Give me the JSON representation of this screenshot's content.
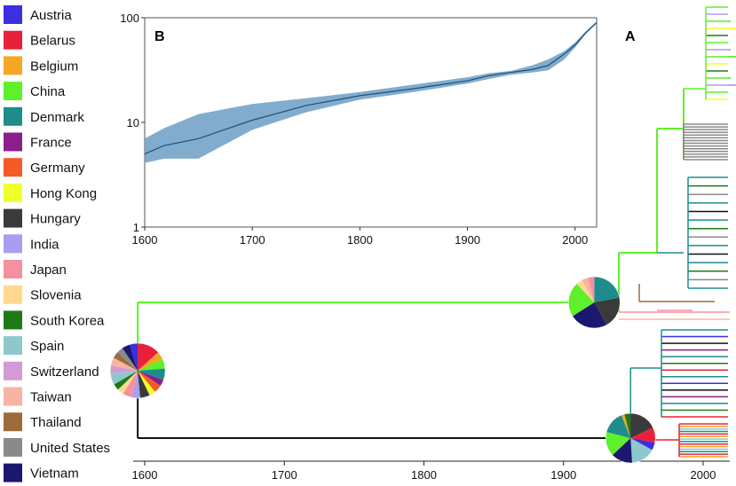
{
  "legend": [
    {
      "label": "Austria",
      "color": "#3b2fe0"
    },
    {
      "label": "Belarus",
      "color": "#e8203c"
    },
    {
      "label": "Belgium",
      "color": "#f5a623"
    },
    {
      "label": "China",
      "color": "#5ef02a"
    },
    {
      "label": "Denmark",
      "color": "#1f8c8c"
    },
    {
      "label": "France",
      "color": "#8a1f8c"
    },
    {
      "label": "Germany",
      "color": "#f55a26"
    },
    {
      "label": "Hong Kong",
      "color": "#f0ff2a"
    },
    {
      "label": "Hungary",
      "color": "#3a3a3a"
    },
    {
      "label": "India",
      "color": "#a89ef0"
    },
    {
      "label": "Japan",
      "color": "#f590a0"
    },
    {
      "label": "Slovenia",
      "color": "#ffd890"
    },
    {
      "label": "South Korea",
      "color": "#1f7a16"
    },
    {
      "label": "Spain",
      "color": "#8ec8cc"
    },
    {
      "label": "Switzerland",
      "color": "#d49ad6"
    },
    {
      "label": "Taiwan",
      "color": "#f8b4a0"
    },
    {
      "label": "Thailand",
      "color": "#9c6b3a"
    },
    {
      "label": "United States",
      "color": "#8a8a8a"
    },
    {
      "label": "Vietnam",
      "color": "#1c1870"
    }
  ],
  "chart_data": [
    {
      "panel": "A",
      "type": "phylogenetic-tree",
      "x_ticks": [
        1600,
        1700,
        1800,
        1900,
        2000
      ],
      "xlim": [
        1595,
        2020
      ],
      "root_year": 1595,
      "clades": [
        {
          "split_year": 1922,
          "branch_color": "#5ef02a",
          "pie": [
            {
              "country": "Denmark",
              "share": 0.22
            },
            {
              "country": "Hungary",
              "share": 0.2
            },
            {
              "country": "Vietnam",
              "share": 0.24
            },
            {
              "country": "China",
              "share": 0.22
            },
            {
              "country": "Slovenia",
              "share": 0.04
            },
            {
              "country": "Taiwan",
              "share": 0.04
            },
            {
              "country": "Japan",
              "share": 0.04
            }
          ]
        },
        {
          "split_year": 1948,
          "branch_color": "#111111",
          "pie": [
            {
              "country": "Hungary",
              "share": 0.18
            },
            {
              "country": "Belarus",
              "share": 0.1
            },
            {
              "country": "Austria",
              "share": 0.05
            },
            {
              "country": "Spain",
              "share": 0.16
            },
            {
              "country": "Vietnam",
              "share": 0.14
            },
            {
              "country": "China",
              "share": 0.16
            },
            {
              "country": "Denmark",
              "share": 0.15
            },
            {
              "country": "Belgium",
              "share": 0.02
            },
            {
              "country": "South Korea",
              "share": 0.04
            }
          ]
        }
      ],
      "root_pie": [
        {
          "country": "Belarus",
          "share": 0.14
        },
        {
          "country": "Belgium",
          "share": 0.05
        },
        {
          "country": "China",
          "share": 0.06
        },
        {
          "country": "Denmark",
          "share": 0.07
        },
        {
          "country": "France",
          "share": 0.04
        },
        {
          "country": "Germany",
          "share": 0.05
        },
        {
          "country": "Hong Kong",
          "share": 0.04
        },
        {
          "country": "Hungary",
          "share": 0.06
        },
        {
          "country": "India",
          "share": 0.05
        },
        {
          "country": "Japan",
          "share": 0.06
        },
        {
          "country": "Slovenia",
          "share": 0.04
        },
        {
          "country": "South Korea",
          "share": 0.04
        },
        {
          "country": "Spain",
          "share": 0.07
        },
        {
          "country": "Switzerland",
          "share": 0.05
        },
        {
          "country": "Taiwan",
          "share": 0.05
        },
        {
          "country": "Thailand",
          "share": 0.04
        },
        {
          "country": "United States",
          "share": 0.04
        },
        {
          "country": "Vietnam",
          "share": 0.05
        },
        {
          "country": "Austria",
          "share": 0.05
        }
      ]
    },
    {
      "panel": "B",
      "type": "area",
      "log_y": true,
      "x_ticks": [
        1600,
        1700,
        1800,
        1900,
        2000
      ],
      "y_ticks": [
        1,
        10,
        100
      ],
      "xlim": [
        1600,
        2020
      ],
      "ylim": [
        1,
        100
      ],
      "band_color": "#6b9ec4",
      "line_color": "#1f4f78",
      "x": [
        1600,
        1618,
        1650,
        1700,
        1750,
        1800,
        1850,
        1900,
        1920,
        1940,
        1960,
        1975,
        1990,
        2000,
        2010,
        2020
      ],
      "median": [
        5.0,
        6.0,
        7.0,
        10.5,
        14.5,
        18.0,
        21.0,
        25.0,
        28.0,
        30.0,
        32.0,
        35.0,
        45.0,
        55.0,
        72.0,
        90.0
      ],
      "lower": [
        4.1,
        4.5,
        4.5,
        8.5,
        12.5,
        16.5,
        19.5,
        23.5,
        26.0,
        28.5,
        30.0,
        31.5,
        40.0,
        52.0,
        70.0,
        88.0
      ],
      "upper": [
        7.0,
        8.8,
        12.0,
        15.0,
        17.0,
        19.5,
        23.0,
        27.0,
        29.5,
        31.0,
        35.0,
        40.0,
        48.0,
        58.0,
        74.0,
        92.0
      ]
    }
  ],
  "panel_labels": {
    "a": "A",
    "b": "B"
  }
}
